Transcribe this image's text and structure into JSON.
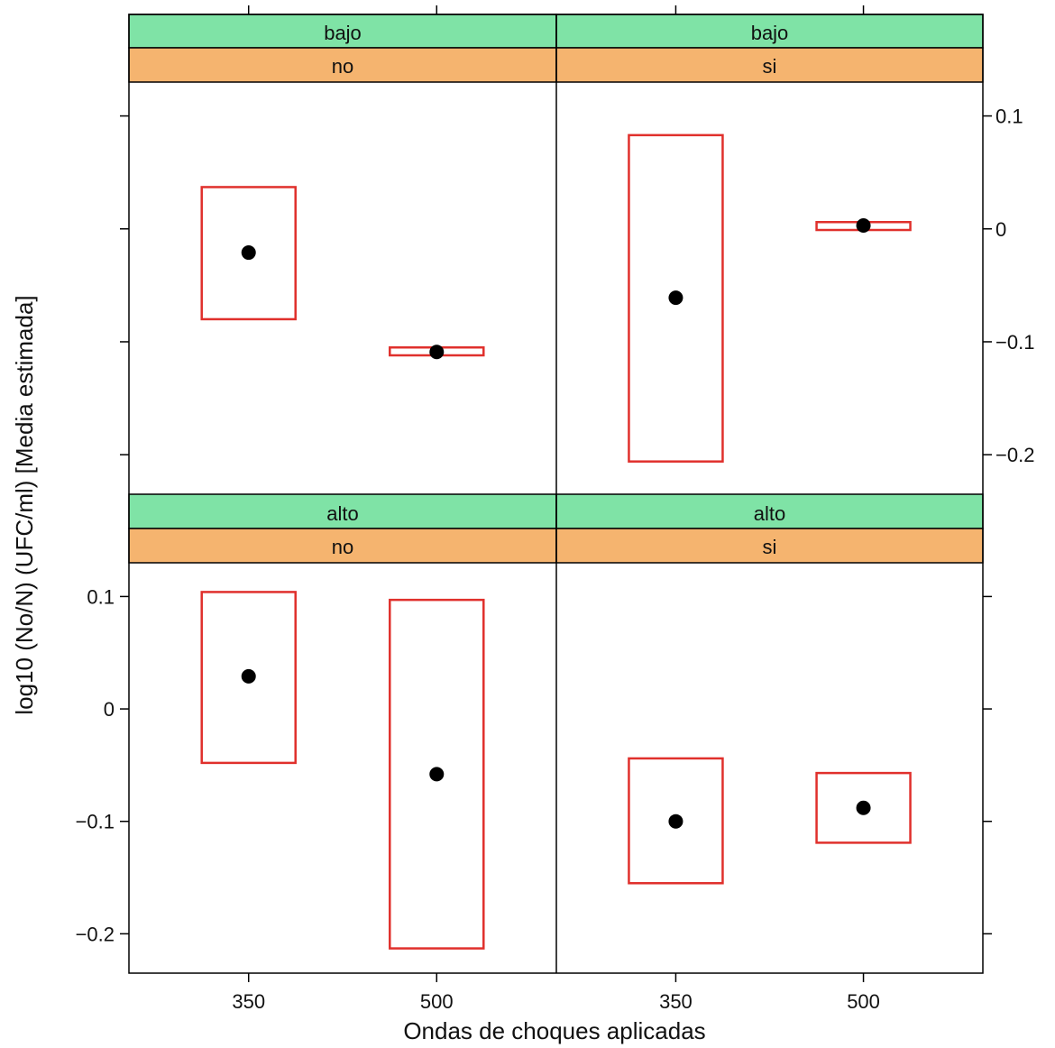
{
  "chart_data": {
    "type": "scatter",
    "layout": "2x2 lattice panels with conditioning strips",
    "xlabel": "Ondas de choques aplicadas",
    "ylabel": "log10 (No/N) (UFC/ml) [Media estimada]",
    "x_categories": [
      "350",
      "500"
    ],
    "ylim": [
      -0.235,
      0.13
    ],
    "yticks": [
      0.1,
      0,
      -0.1,
      -0.2
    ],
    "ytick_labels": [
      "0.1",
      "0",
      "−0.1",
      "−0.2"
    ],
    "colors": {
      "strip_top": "#7fe3a6",
      "strip_bottom": "#f5b46f",
      "box": "#e0302c",
      "point": "#000000"
    },
    "panels": [
      {
        "strip_top": "bajo",
        "strip_bottom": "no",
        "row": "top",
        "col": "left",
        "points": [
          {
            "x": "350",
            "mean": -0.021,
            "low": -0.08,
            "high": 0.037
          },
          {
            "x": "500",
            "mean": -0.109,
            "low": -0.112,
            "high": -0.105
          }
        ]
      },
      {
        "strip_top": "bajo",
        "strip_bottom": "si",
        "row": "top",
        "col": "right",
        "points": [
          {
            "x": "350",
            "mean": -0.061,
            "low": -0.206,
            "high": 0.083
          },
          {
            "x": "500",
            "mean": 0.003,
            "low": -0.001,
            "high": 0.006
          }
        ]
      },
      {
        "strip_top": "alto",
        "strip_bottom": "no",
        "row": "bottom",
        "col": "left",
        "points": [
          {
            "x": "350",
            "mean": 0.029,
            "low": -0.048,
            "high": 0.104
          },
          {
            "x": "500",
            "mean": -0.058,
            "low": -0.213,
            "high": 0.097
          }
        ]
      },
      {
        "strip_top": "alto",
        "strip_bottom": "si",
        "row": "bottom",
        "col": "right",
        "points": [
          {
            "x": "350",
            "mean": -0.1,
            "low": -0.155,
            "high": -0.044
          },
          {
            "x": "500",
            "mean": -0.088,
            "low": -0.119,
            "high": -0.057
          }
        ]
      }
    ]
  }
}
